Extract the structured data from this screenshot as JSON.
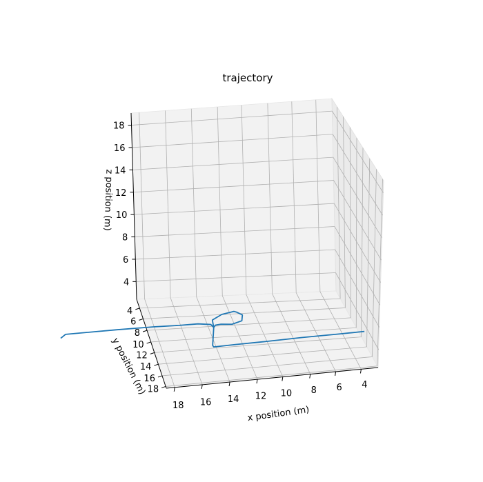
{
  "chart_data": {
    "type": "line",
    "projection": "3d",
    "title": "trajectory",
    "xlabel": "x position (m)",
    "ylabel": "y position (m)",
    "zlabel": "z position (m)",
    "x_ticks": [
      "18",
      "16",
      "14",
      "12",
      "10",
      "8",
      "6",
      "4"
    ],
    "y_ticks": [
      "4",
      "6",
      "8",
      "10",
      "12",
      "14",
      "16",
      "18"
    ],
    "z_ticks": [
      "4",
      "6",
      "8",
      "10",
      "12",
      "14",
      "16",
      "18"
    ],
    "grid": true,
    "series": [
      {
        "color": "#1f77b4",
        "points_xyz": [
          [
            30.0,
            10.5,
            3.4
          ],
          [
            26.0,
            10.5,
            3.4
          ],
          [
            22.0,
            10.6,
            3.5
          ],
          [
            19.0,
            10.6,
            3.5
          ],
          [
            17.0,
            10.7,
            3.5
          ],
          [
            15.5,
            10.7,
            3.5
          ],
          [
            14.5,
            10.8,
            3.4
          ],
          [
            14.3,
            11.0,
            3.2
          ],
          [
            14.4,
            11.0,
            3.9
          ],
          [
            13.6,
            10.7,
            4.2
          ],
          [
            12.6,
            10.5,
            4.3
          ],
          [
            12.4,
            10.7,
            4.3
          ],
          [
            12.1,
            11.5,
            4.4
          ],
          [
            12.2,
            11.8,
            4.0
          ],
          [
            13.0,
            11.9,
            3.8
          ],
          [
            13.8,
            11.5,
            3.7
          ],
          [
            14.2,
            11.2,
            3.5
          ],
          [
            14.3,
            11.0,
            3.2
          ],
          [
            14.3,
            10.3,
            1.2
          ],
          [
            14.2,
            10.2,
            1.0
          ],
          [
            12.5,
            10.1,
            1.0
          ],
          [
            10.0,
            10.0,
            1.0
          ],
          [
            7.0,
            9.8,
            1.0
          ],
          [
            4.0,
            9.7,
            1.0
          ],
          [
            2.0,
            9.6,
            1.0
          ]
        ]
      }
    ]
  }
}
